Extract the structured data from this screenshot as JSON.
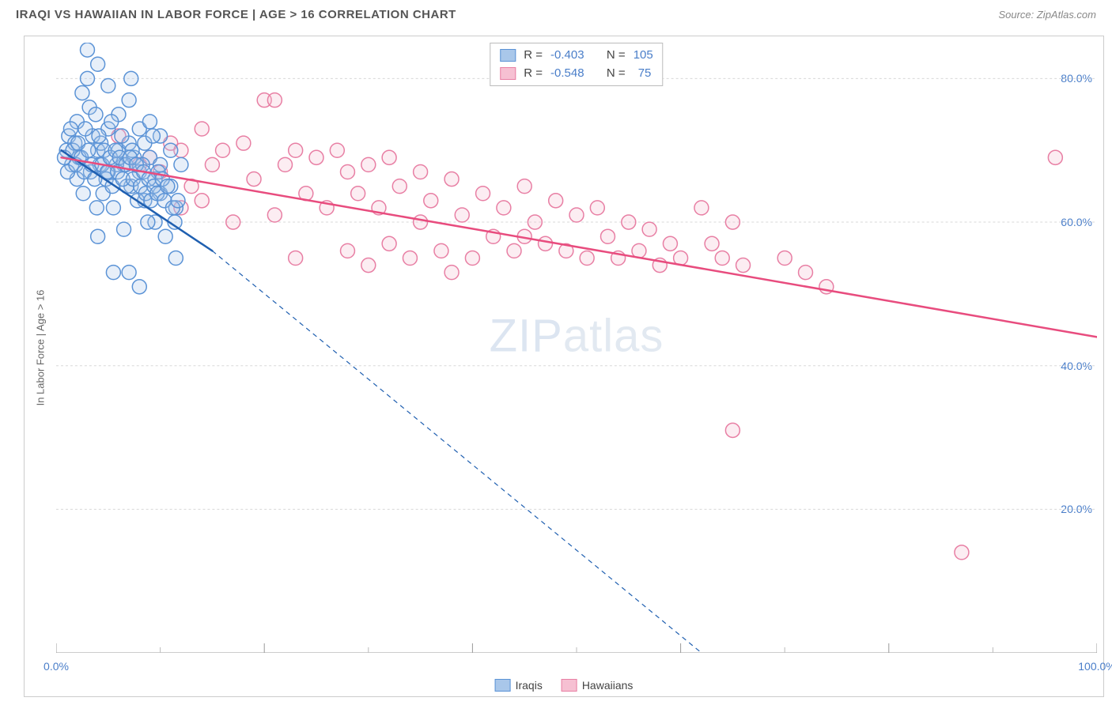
{
  "header": {
    "title": "IRAQI VS HAWAIIAN IN LABOR FORCE | AGE > 16 CORRELATION CHART",
    "source_prefix": "Source: ",
    "source": "ZipAtlas.com"
  },
  "watermark": {
    "bold": "ZIP",
    "light": "atlas"
  },
  "chart": {
    "type": "scatter",
    "background_color": "#ffffff",
    "border_color": "#cccccc",
    "grid_color_major": "#d8d8d8",
    "grid_color_minor": "#e6e6e6",
    "xlim": [
      0,
      100
    ],
    "ylim": [
      0,
      85
    ],
    "x_major_ticks": [
      0,
      20,
      40,
      60,
      80,
      100
    ],
    "x_minor_ticks": [
      10,
      30,
      50,
      70,
      90
    ],
    "y_gridlines": [
      20,
      40,
      60,
      80
    ],
    "x_tick_labels": {
      "0": "0.0%",
      "100": "100.0%"
    },
    "y_tick_labels": {
      "20": "20.0%",
      "40": "40.0%",
      "60": "60.0%",
      "80": "80.0%"
    },
    "ylabel": "In Labor Force | Age > 16",
    "axis_label_color": "#666666",
    "tick_label_color": "#4a7ec9",
    "marker_radius": 9,
    "marker_stroke_width": 1.5,
    "marker_fill_opacity": 0.28,
    "line_width_solid": 2.5,
    "line_width_dash": 1.2,
    "dash_pattern": "6,5"
  },
  "series": {
    "iraqis": {
      "label": "Iraqis",
      "color_stroke": "#5b93d6",
      "color_fill": "#a9c7ea",
      "line_color": "#1f5fb0",
      "R": "-0.403",
      "N": "105",
      "trend_solid": {
        "x1": 0.5,
        "y1": 70,
        "x2": 15,
        "y2": 56
      },
      "trend_dash": {
        "x1": 15,
        "y1": 56,
        "x2": 62,
        "y2": 0
      },
      "points": [
        [
          1,
          70
        ],
        [
          1.2,
          72
        ],
        [
          1.5,
          68
        ],
        [
          2,
          74
        ],
        [
          2,
          66
        ],
        [
          2.5,
          78
        ],
        [
          3,
          84
        ],
        [
          3,
          80
        ],
        [
          3.2,
          76
        ],
        [
          3.5,
          72
        ],
        [
          4,
          70
        ],
        [
          4,
          82
        ],
        [
          4.2,
          68
        ],
        [
          4.5,
          64
        ],
        [
          5,
          79
        ],
        [
          5,
          73
        ],
        [
          5,
          67
        ],
        [
          5.5,
          62
        ],
        [
          6,
          75
        ],
        [
          6,
          70
        ],
        [
          6.5,
          68
        ],
        [
          6.5,
          59
        ],
        [
          7,
          77
        ],
        [
          7,
          71
        ],
        [
          7.2,
          65
        ],
        [
          7.5,
          69
        ],
        [
          8,
          73
        ],
        [
          8,
          67
        ],
        [
          8.5,
          71
        ],
        [
          8.5,
          63
        ],
        [
          9,
          69
        ],
        [
          9,
          74
        ],
        [
          9.5,
          66
        ],
        [
          9.5,
          60
        ],
        [
          10,
          72
        ],
        [
          10,
          68
        ],
        [
          10,
          64
        ],
        [
          10.5,
          58
        ],
        [
          11,
          70
        ],
        [
          11,
          65
        ],
        [
          11.5,
          62
        ],
        [
          11.5,
          55
        ],
        [
          12,
          68
        ],
        [
          1.8,
          71
        ],
        [
          2.2,
          69
        ],
        [
          2.8,
          73
        ],
        [
          3.3,
          67
        ],
        [
          3.8,
          75
        ],
        [
          4.3,
          71
        ],
        [
          4.8,
          66
        ],
        [
          5.3,
          74
        ],
        [
          5.8,
          68
        ],
        [
          6.3,
          72
        ],
        [
          6.8,
          65
        ],
        [
          7.3,
          70
        ],
        [
          7.8,
          63
        ],
        [
          8.3,
          68
        ],
        [
          8.8,
          60
        ],
        [
          9.3,
          72
        ],
        [
          9.8,
          67
        ],
        [
          0.8,
          69
        ],
        [
          1.1,
          67
        ],
        [
          1.4,
          73
        ],
        [
          1.6,
          70
        ],
        [
          1.9,
          68
        ],
        [
          2.1,
          71
        ],
        [
          2.4,
          69
        ],
        [
          2.7,
          67
        ],
        [
          3.1,
          70
        ],
        [
          3.4,
          68
        ],
        [
          3.7,
          66
        ],
        [
          4.1,
          72
        ],
        [
          4.4,
          68
        ],
        [
          4.6,
          70
        ],
        [
          4.9,
          67
        ],
        [
          5.2,
          69
        ],
        [
          5.4,
          65
        ],
        [
          5.7,
          70
        ],
        [
          5.9,
          67
        ],
        [
          6.1,
          69
        ],
        [
          6.4,
          66
        ],
        [
          6.7,
          68
        ],
        [
          7.1,
          69
        ],
        [
          7.4,
          66
        ],
        [
          7.7,
          68
        ],
        [
          8.1,
          65
        ],
        [
          8.4,
          67
        ],
        [
          8.6,
          64
        ],
        [
          8.9,
          66
        ],
        [
          9.1,
          63
        ],
        [
          9.4,
          65
        ],
        [
          9.7,
          64
        ],
        [
          10.2,
          66
        ],
        [
          10.4,
          63
        ],
        [
          10.7,
          65
        ],
        [
          11.2,
          62
        ],
        [
          11.4,
          60
        ],
        [
          11.7,
          63
        ],
        [
          7.2,
          80
        ],
        [
          2.6,
          64
        ],
        [
          3.9,
          62
        ],
        [
          4,
          58
        ],
        [
          5.5,
          53
        ],
        [
          7,
          53
        ],
        [
          8,
          51
        ]
      ]
    },
    "hawaiians": {
      "label": "Hawaiians",
      "color_stroke": "#e87fa4",
      "color_fill": "#f6c0d2",
      "line_color": "#e84c7e",
      "R": "-0.548",
      "N": "75",
      "trend_solid": {
        "x1": 0.5,
        "y1": 69,
        "x2": 100,
        "y2": 44
      },
      "trend_dash": null,
      "points": [
        [
          6,
          72
        ],
        [
          9,
          69
        ],
        [
          10,
          67
        ],
        [
          11,
          71
        ],
        [
          12,
          62
        ],
        [
          12,
          70
        ],
        [
          13,
          65
        ],
        [
          14,
          63
        ],
        [
          15,
          68
        ],
        [
          16,
          70
        ],
        [
          17,
          60
        ],
        [
          18,
          71
        ],
        [
          19,
          66
        ],
        [
          20,
          77
        ],
        [
          21,
          61
        ],
        [
          21,
          77
        ],
        [
          22,
          68
        ],
        [
          23,
          70
        ],
        [
          24,
          64
        ],
        [
          25,
          69
        ],
        [
          26,
          62
        ],
        [
          27,
          70
        ],
        [
          28,
          67
        ],
        [
          28,
          56
        ],
        [
          29,
          64
        ],
        [
          30,
          68
        ],
        [
          30,
          54
        ],
        [
          31,
          62
        ],
        [
          32,
          69
        ],
        [
          32,
          57
        ],
        [
          33,
          65
        ],
        [
          34,
          55
        ],
        [
          35,
          67
        ],
        [
          35,
          60
        ],
        [
          36,
          63
        ],
        [
          37,
          56
        ],
        [
          38,
          66
        ],
        [
          39,
          61
        ],
        [
          40,
          55
        ],
        [
          41,
          64
        ],
        [
          42,
          58
        ],
        [
          43,
          62
        ],
        [
          44,
          56
        ],
        [
          45,
          65
        ],
        [
          45,
          58
        ],
        [
          46,
          60
        ],
        [
          47,
          57
        ],
        [
          48,
          63
        ],
        [
          49,
          56
        ],
        [
          50,
          61
        ],
        [
          51,
          55
        ],
        [
          52,
          62
        ],
        [
          53,
          58
        ],
        [
          54,
          55
        ],
        [
          55,
          60
        ],
        [
          56,
          56
        ],
        [
          57,
          59
        ],
        [
          58,
          54
        ],
        [
          59,
          57
        ],
        [
          60,
          55
        ],
        [
          62,
          62
        ],
        [
          63,
          57
        ],
        [
          64,
          55
        ],
        [
          65,
          60
        ],
        [
          66,
          54
        ],
        [
          70,
          55
        ],
        [
          72,
          53
        ],
        [
          74,
          51
        ],
        [
          65,
          31
        ],
        [
          87,
          14
        ],
        [
          96,
          69
        ],
        [
          8,
          68
        ],
        [
          14,
          73
        ],
        [
          23,
          55
        ],
        [
          38,
          53
        ]
      ]
    }
  },
  "legend_labels": {
    "R_prefix": "R = ",
    "N_prefix": "N = "
  }
}
